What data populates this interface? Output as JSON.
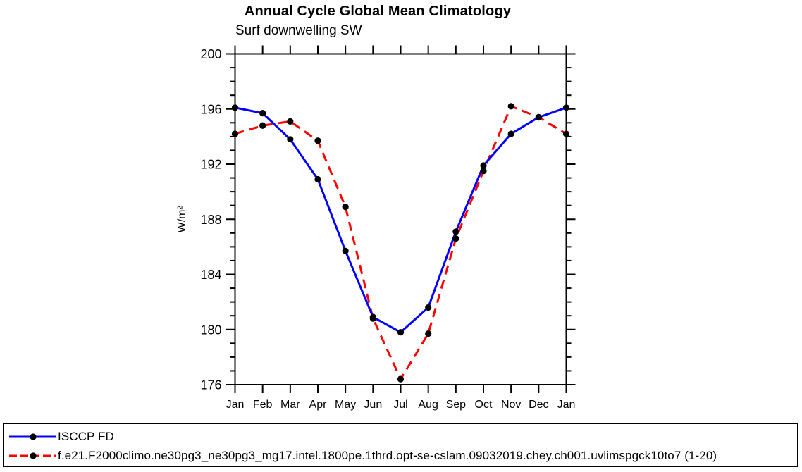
{
  "title": "Annual Cycle Global Mean Climatology",
  "subtitle": "Surf downwelling SW",
  "chart_data": {
    "type": "line",
    "categories": [
      "Jan",
      "Feb",
      "Mar",
      "Apr",
      "May",
      "Jun",
      "Jul",
      "Aug",
      "Sep",
      "Oct",
      "Nov",
      "Dec",
      "Jan"
    ],
    "series": [
      {
        "name": "ISCCP FD",
        "color": "#0000ff",
        "line_style": "solid",
        "values": [
          196.1,
          195.7,
          193.8,
          190.9,
          185.7,
          180.9,
          179.8,
          181.6,
          187.1,
          191.9,
          194.2,
          195.4,
          196.1
        ]
      },
      {
        "name": "f.e21.F2000climo.ne30pg3_ne30pg3_mg17.intel.1800pe.1thrd.opt-se-cslam.09032019.chey.ch001.uvlimspgck10to7 (1-20)",
        "color": "#ff0000",
        "line_style": "dashed",
        "values": [
          194.2,
          194.8,
          195.1,
          193.7,
          188.9,
          180.8,
          176.4,
          179.7,
          186.6,
          191.5,
          196.2,
          195.4,
          194.2
        ]
      }
    ],
    "xlabel": "",
    "ylabel": "W/m²",
    "ylim": [
      176,
      200
    ],
    "ytick_major_step": 4,
    "ytick_minor_step": 1,
    "grid": false,
    "legend_position": "bottom",
    "marker": "filled-circle",
    "marker_color": "#000000",
    "frame": "box-with-outward-ticks"
  }
}
